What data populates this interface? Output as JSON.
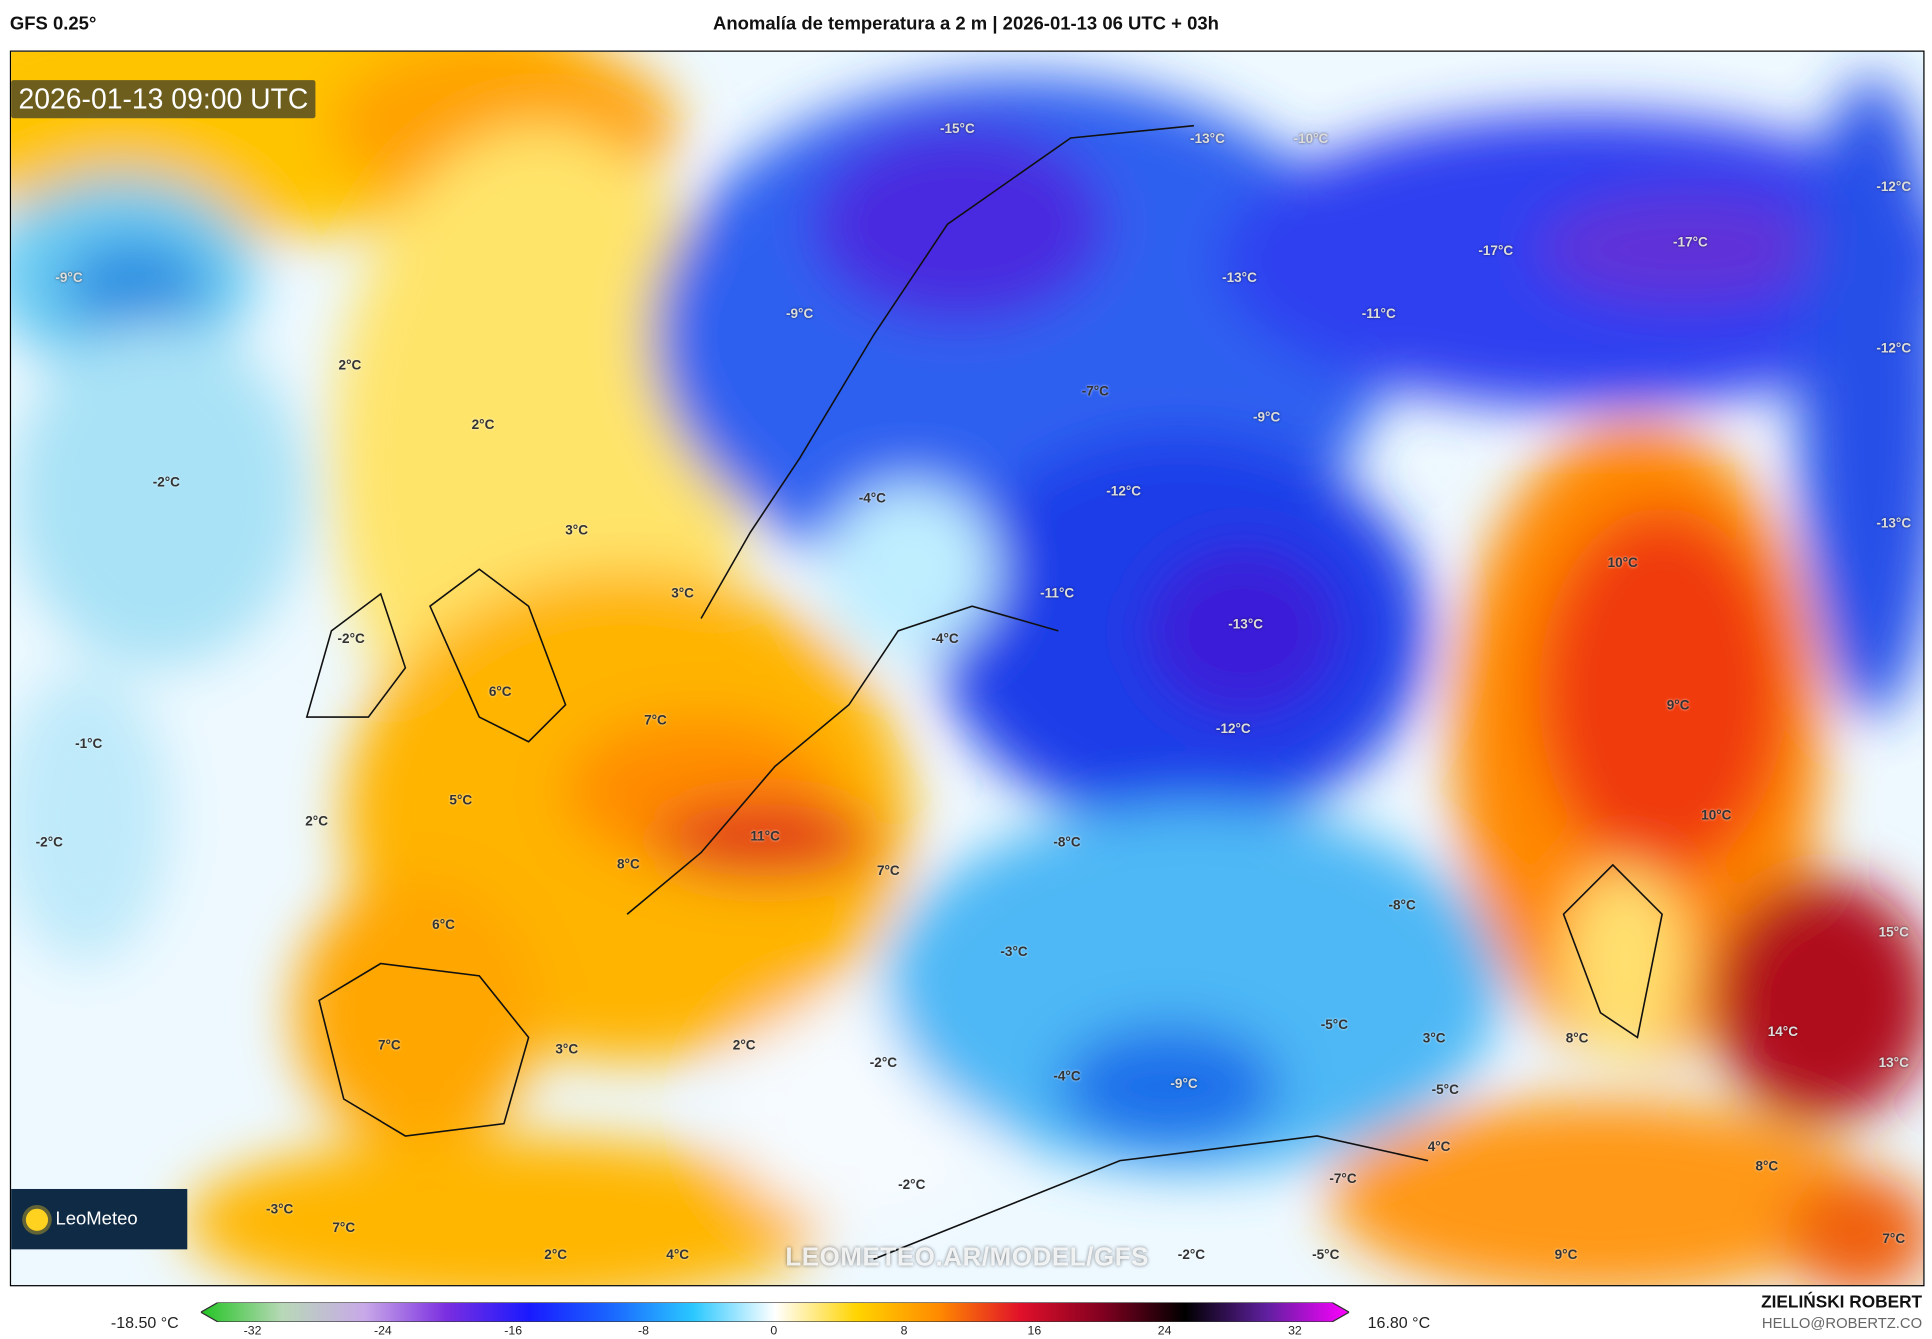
{
  "header": {
    "model": "GFS 0.25°",
    "title": "Anomalía de temperatura a 2 m | 2026-01-13 06 UTC + 03h"
  },
  "map": {
    "valid_time": "2026-01-13 09:00 UTC",
    "watermark": "LEOMETEO.AR/MODEL/GFS",
    "logo": "LeoMeteo",
    "labels": [
      "-15°C",
      "-13°C",
      "-10°C",
      "-12°C",
      "-9°C",
      "-17°C",
      "-17°C",
      "-13°C",
      "-11°C",
      "-9°C",
      "2°C",
      "-12°C",
      "-7°C",
      "-9°C",
      "2°C",
      "-2°C",
      "-4°C",
      "-12°C",
      "-13°C",
      "3°C",
      "10°C",
      "3°C",
      "-11°C",
      "-13°C",
      "-2°C",
      "-4°C",
      "6°C",
      "7°C",
      "9°C",
      "-12°C",
      "-1°C",
      "5°C",
      "2°C",
      "10°C",
      "-2°C",
      "11°C",
      "-8°C",
      "8°C",
      "7°C",
      "-8°C",
      "6°C",
      "15°C",
      "-3°C",
      "14°C",
      "3°C",
      "-5°C",
      "8°C",
      "7°C",
      "3°C",
      "2°C",
      "-2°C",
      "13°C",
      "-4°C",
      "-9°C",
      "-5°C",
      "4°C",
      "-7°C",
      "8°C",
      "-2°C",
      "-3°C",
      "7°C",
      "2°C",
      "4°C",
      "-2°C",
      "-5°C",
      "9°C",
      "7°C"
    ]
  },
  "colorbar": {
    "min_label": "-18.50 °C",
    "max_label": "16.80 °C",
    "ticks": [
      "-32",
      "-24",
      "-16",
      "-8",
      "0",
      "8",
      "16",
      "24",
      "32"
    ],
    "colors": [
      "#22c422",
      "#b8d8b8",
      "#c8a8e8",
      "#7a2ee0",
      "#1a1aff",
      "#1a66ff",
      "#2ac8ff",
      "#ffffff",
      "#ffd400",
      "#ff8a00",
      "#e0102a",
      "#800020",
      "#000000",
      "#6020a0",
      "#ff00ff"
    ]
  },
  "credits": {
    "author": "ZIELIŃSKI ROBERT",
    "email": "HELLO@ROBERTZ.CO"
  }
}
